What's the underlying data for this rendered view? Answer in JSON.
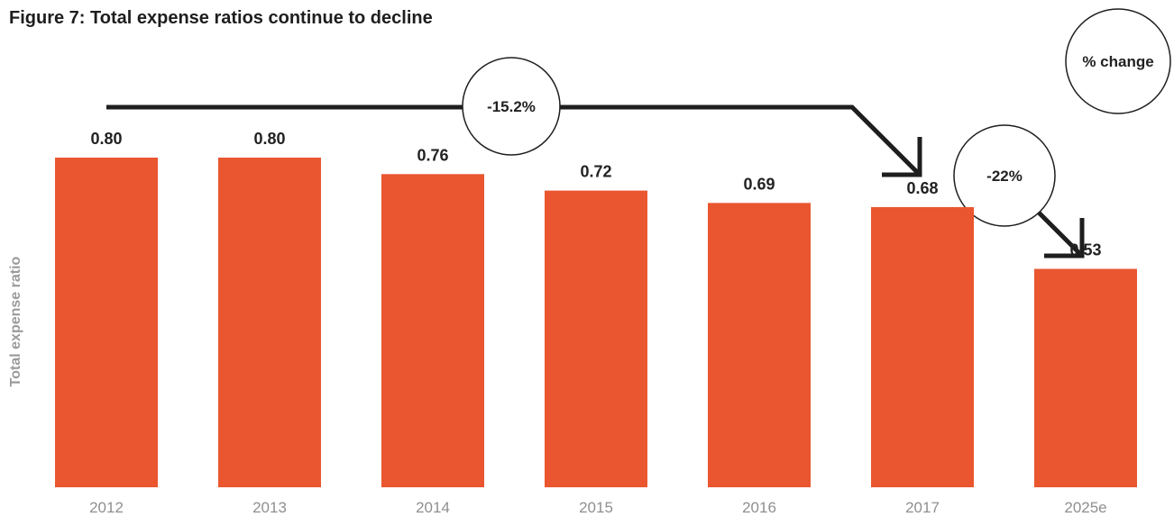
{
  "chart_data": {
    "type": "bar",
    "title": "Figure 7: Total expense ratios continue to decline",
    "ylabel": "Total expense ratio",
    "xlabel": "",
    "categories": [
      "2012",
      "2013",
      "2014",
      "2015",
      "2016",
      "2017",
      "2025e"
    ],
    "values": [
      0.8,
      0.8,
      0.76,
      0.72,
      0.69,
      0.68,
      0.53
    ],
    "value_labels": [
      "0.80",
      "0.80",
      "0.76",
      "0.72",
      "0.69",
      "0.68",
      "0.53"
    ],
    "ylim": [
      0,
      0.8
    ],
    "grid": false,
    "bar_color": "#E9562F",
    "annotations": {
      "legend": "% change",
      "change_2012_2017": "-15.2%",
      "change_2017_2025e": "-22%"
    }
  }
}
